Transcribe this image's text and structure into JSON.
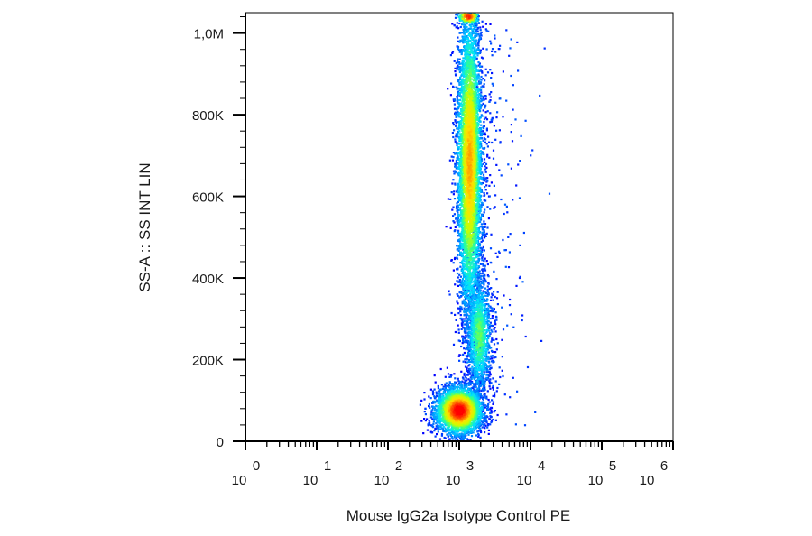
{
  "chart_data": {
    "type": "scatter",
    "style": "density-colored flow cytometry dot plot",
    "xlabel": "Mouse IgG2a Isotype Control PE",
    "ylabel": "SS-A :: SS INT LIN",
    "x_scale": "log",
    "y_scale": "linear",
    "xlim": [
      1,
      1000000
    ],
    "ylim": [
      0,
      1050000
    ],
    "x_ticks": [
      {
        "base": "10",
        "exp": "0",
        "value": 1
      },
      {
        "base": "10",
        "exp": "1",
        "value": 10
      },
      {
        "base": "10",
        "exp": "2",
        "value": 100
      },
      {
        "base": "10",
        "exp": "3",
        "value": 1000
      },
      {
        "base": "10",
        "exp": "4",
        "value": 10000
      },
      {
        "base": "10",
        "exp": "5",
        "value": 100000
      },
      {
        "base": "10",
        "exp": "6",
        "value": 1000000
      }
    ],
    "y_ticks": [
      {
        "label": "0",
        "value": 0
      },
      {
        "label": "200K",
        "value": 200000
      },
      {
        "label": "400K",
        "value": 400000
      },
      {
        "label": "600K",
        "value": 600000
      },
      {
        "label": "800K",
        "value": 800000
      },
      {
        "label": "1,0M",
        "value": 1000000
      }
    ],
    "colormap": [
      "#0000ff",
      "#0088ff",
      "#00e0ff",
      "#30ff90",
      "#c8ff00",
      "#ffe000",
      "#ff7000",
      "#ff0000"
    ],
    "populations": [
      {
        "center_x": 1000,
        "center_y": 75000,
        "spread_log_x": 0.17,
        "spread_y": 30000,
        "count": 3000,
        "peak_density": 1.0
      },
      {
        "center_x": 1900,
        "center_y": 260000,
        "spread_log_x": 0.09,
        "spread_y": 75000,
        "count": 1300,
        "peak_density": 0.45
      },
      {
        "center_x": 1400,
        "center_y": 680000,
        "spread_log_x": 0.09,
        "spread_y": 200000,
        "count": 5200,
        "peak_density": 0.75
      },
      {
        "center_x": 1350,
        "center_y": 1040000,
        "spread_log_x": 0.08,
        "spread_y": 10000,
        "count": 200,
        "peak_density": 0.95
      }
    ]
  }
}
